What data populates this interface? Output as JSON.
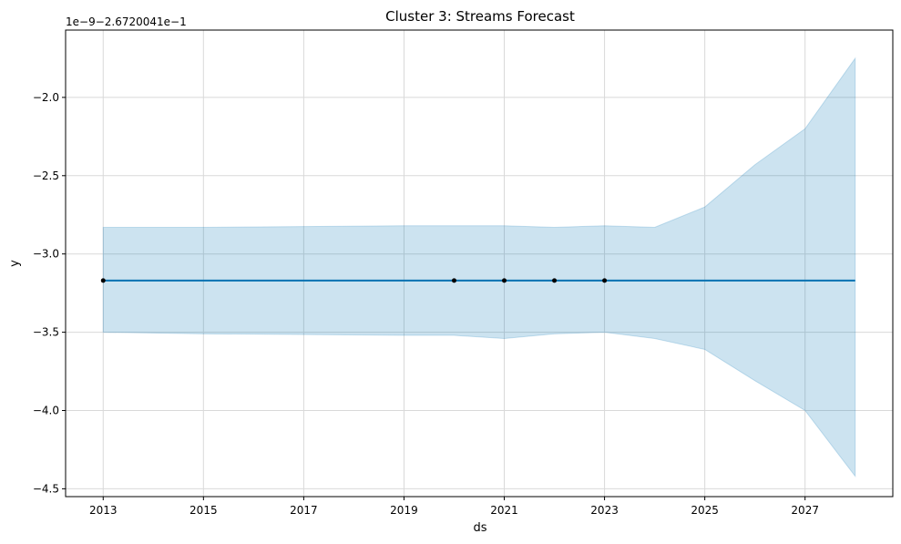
{
  "chart_data": {
    "type": "line",
    "title": "Cluster 3: Streams Forecast",
    "xlabel": "ds",
    "ylabel": "y",
    "offset_text": "1e−9−2.6720041e−1",
    "xlim": [
      2012.25,
      2028.75
    ],
    "ylim": [
      -4.55,
      -1.57
    ],
    "x_ticks": [
      2013,
      2015,
      2017,
      2019,
      2021,
      2023,
      2025,
      2027
    ],
    "x_tick_labels": [
      "2013",
      "2015",
      "2017",
      "2019",
      "2021",
      "2023",
      "2025",
      "2027"
    ],
    "y_ticks": [
      -4.5,
      -4.0,
      -3.5,
      -3.0,
      -2.5,
      -2.0
    ],
    "y_tick_labels": [
      "−4.5",
      "−4.0",
      "−3.5",
      "−3.0",
      "−2.5",
      "−2.0"
    ],
    "grid": true,
    "colors": {
      "forecast_line": "#0072b2",
      "interval_fill": "#0072b2",
      "observed_points": "#000000",
      "grid": "#d9d9d9"
    },
    "series": [
      {
        "kind": "observed",
        "x": [
          2013,
          2020,
          2021,
          2022,
          2023
        ],
        "y": [
          -3.17,
          -3.17,
          -3.17,
          -3.17,
          -3.17
        ]
      },
      {
        "kind": "forecast",
        "x": [
          2013,
          2028
        ],
        "y": [
          -3.17,
          -3.17
        ]
      },
      {
        "kind": "interval",
        "x": [
          2013,
          2015,
          2017,
          2019,
          2020,
          2021,
          2022,
          2023,
          2024,
          2025,
          2026,
          2027,
          2028
        ],
        "upper": [
          -2.83,
          -2.83,
          -2.825,
          -2.82,
          -2.82,
          -2.82,
          -2.83,
          -2.82,
          -2.83,
          -2.7,
          -2.43,
          -2.2,
          -1.75
        ],
        "lower": [
          -3.5,
          -3.51,
          -3.515,
          -3.52,
          -3.52,
          -3.54,
          -3.51,
          -3.5,
          -3.54,
          -3.61,
          -3.81,
          -4.0,
          -4.42
        ]
      }
    ]
  }
}
